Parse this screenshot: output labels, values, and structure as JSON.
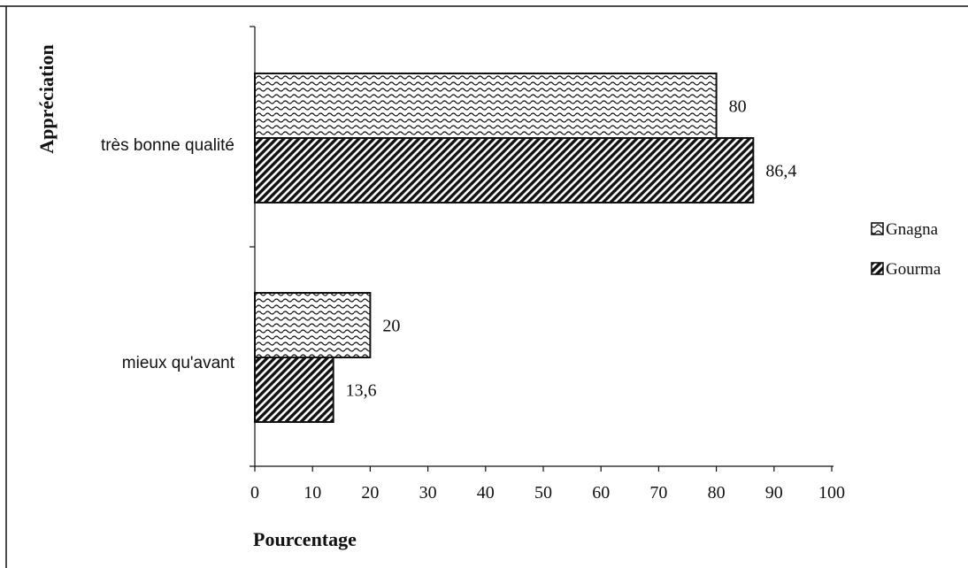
{
  "chart_data": {
    "type": "bar",
    "orientation": "horizontal",
    "categories": [
      "très bonne qualité",
      "mieux qu'avant"
    ],
    "series": [
      {
        "name": "Gnagna",
        "values": [
          80,
          20
        ],
        "data_labels": [
          "80",
          "20"
        ],
        "pattern": "wavy"
      },
      {
        "name": "Gourma",
        "values": [
          86.4,
          13.6
        ],
        "data_labels": [
          "86,4",
          "13,6"
        ],
        "pattern": "diagonal-hatch"
      }
    ],
    "xlabel": "Pourcentage",
    "ylabel": "Appréciation",
    "xlim": [
      0,
      100
    ],
    "xticks": [
      0,
      10,
      20,
      30,
      40,
      50,
      60,
      70,
      80,
      90,
      100
    ],
    "xtick_labels": [
      "0",
      "10",
      "20",
      "30",
      "40",
      "50",
      "60",
      "70",
      "80",
      "90",
      "100"
    ],
    "grid": false,
    "legend_position": "right",
    "colors": {
      "ink": "#111111",
      "background": "#ffffff"
    }
  }
}
